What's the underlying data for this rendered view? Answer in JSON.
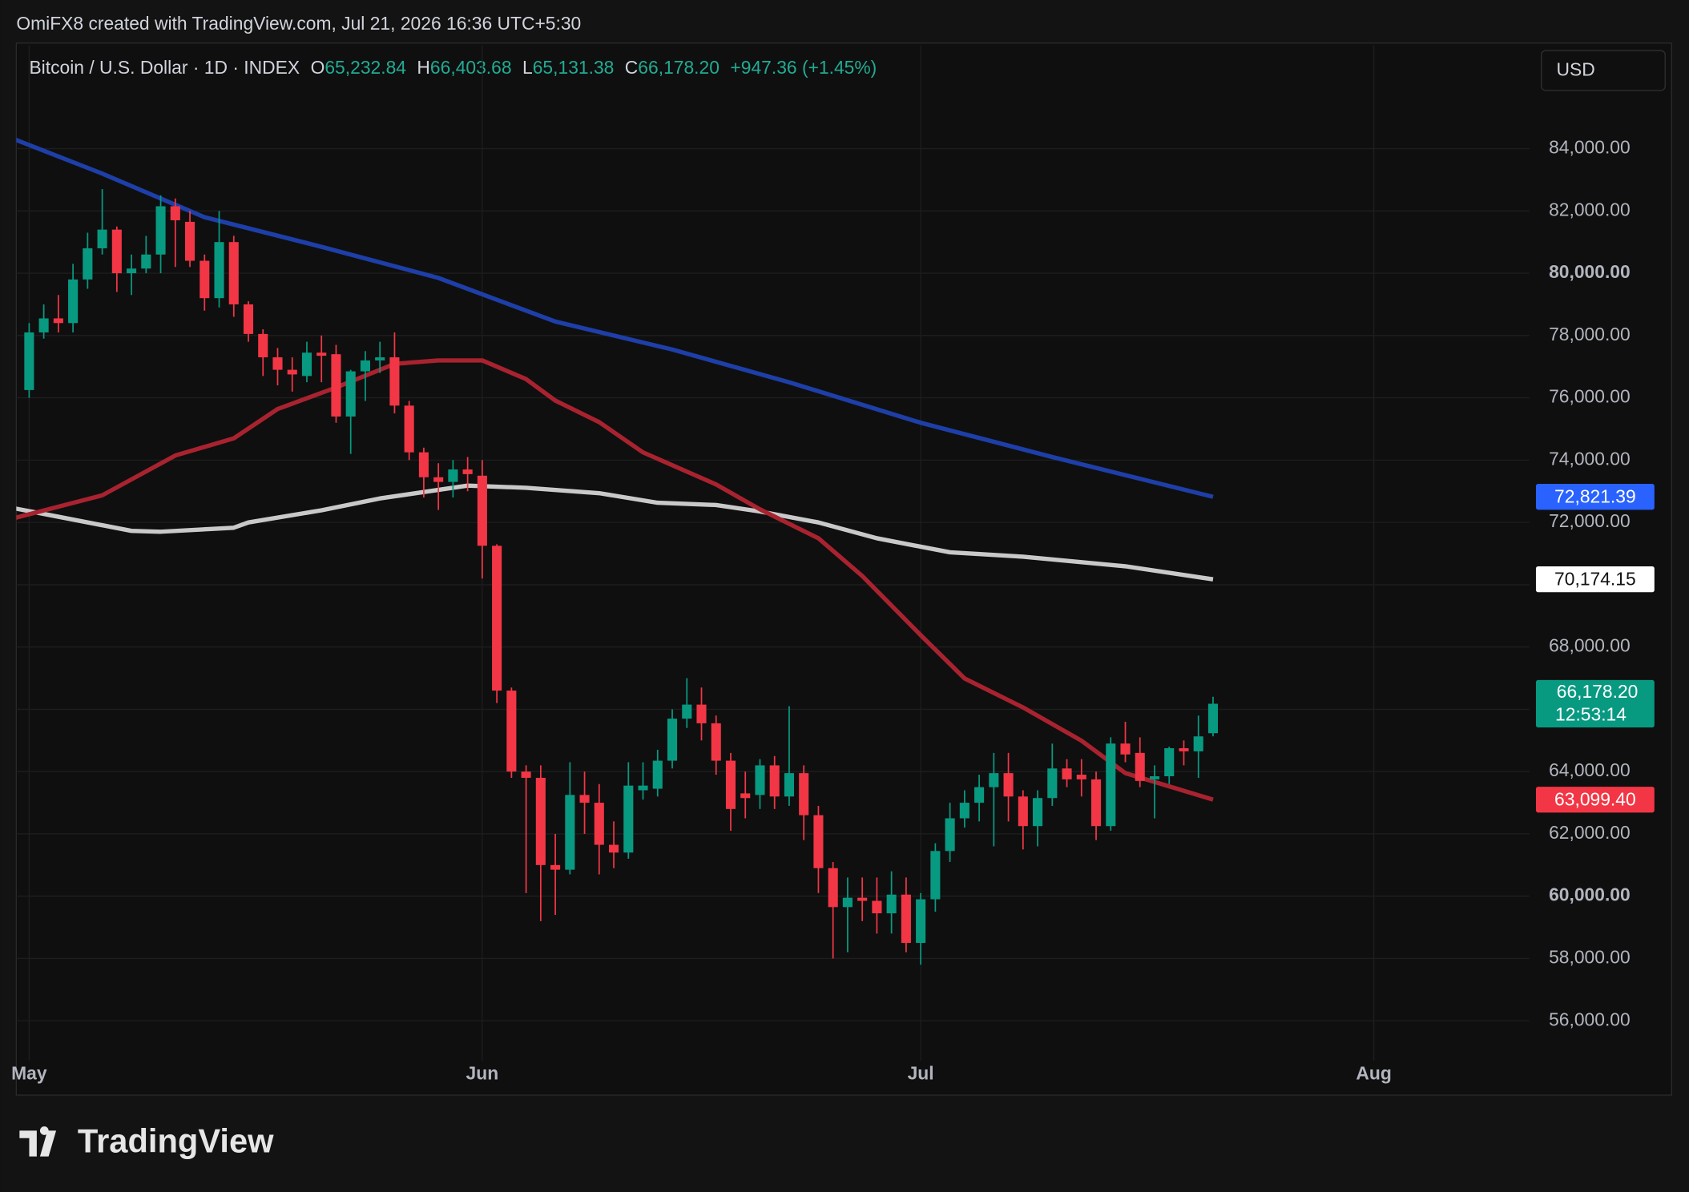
{
  "header": {
    "attribution": "OmiFX8 created with TradingView.com, Jul 21, 2026 16:36 UTC+5:30",
    "symbol": "Bitcoin / U.S. Dollar · 1D · INDEX",
    "ohlc": [
      {
        "key": "O",
        "value": "65,232.84"
      },
      {
        "key": "H",
        "value": "66,403.68"
      },
      {
        "key": "L",
        "value": "65,131.38"
      },
      {
        "key": "C",
        "value": "66,178.20"
      }
    ],
    "change": "+947.36 (+1.45%)",
    "currency": "USD"
  },
  "chart_data": {
    "type": "candlestick",
    "up_color": "#089981",
    "down_color": "#f23645",
    "grid": true,
    "x": [
      0,
      1,
      2,
      3,
      4,
      5,
      6,
      7,
      8,
      9,
      10,
      11,
      12,
      13,
      14,
      15,
      16,
      17,
      18,
      19,
      20,
      21,
      22,
      23,
      24,
      25,
      26,
      27,
      28,
      29,
      30,
      31,
      32,
      33,
      34,
      35,
      36,
      37,
      38,
      39,
      40,
      41,
      42,
      43,
      44,
      45,
      46,
      47,
      48,
      49,
      50,
      51,
      52,
      53,
      54,
      55,
      56,
      57,
      58,
      59,
      60,
      61,
      62,
      63,
      64,
      65,
      66,
      67,
      68,
      69,
      70,
      71,
      72,
      73,
      74,
      75,
      76,
      77,
      78,
      79,
      80,
      81
    ],
    "open": [
      76250,
      78100,
      78550,
      78400,
      79800,
      80800,
      81400,
      80000,
      80150,
      80600,
      82150,
      81650,
      80400,
      79200,
      81000,
      79000,
      78050,
      77300,
      76900,
      76700,
      77450,
      77400,
      75400,
      76850,
      77200,
      77300,
      75750,
      74250,
      73450,
      73300,
      73700,
      73500,
      71250,
      66600,
      64000,
      63800,
      61000,
      60850,
      63250,
      63000,
      61650,
      61400,
      63400,
      63450,
      64350,
      65700,
      66150,
      65550,
      64350,
      63300,
      63250,
      64200,
      63200,
      63950,
      62600,
      60900,
      59650,
      59950,
      59850,
      59450,
      60050,
      58500,
      59900,
      61450,
      62500,
      63000,
      63500,
      63950,
      63200,
      62250,
      63150,
      64100,
      63900,
      63750,
      62250,
      64900,
      64600,
      63750,
      63850,
      64750,
      64650,
      65232.84
    ],
    "high": [
      78400,
      79000,
      79300,
      80300,
      81300,
      82700,
      81500,
      80600,
      81200,
      82500,
      82400,
      82000,
      80600,
      82000,
      81200,
      79100,
      78200,
      77600,
      77300,
      77800,
      78000,
      77700,
      76900,
      77500,
      77800,
      78100,
      75900,
      74400,
      73900,
      74000,
      74100,
      74000,
      71300,
      66700,
      64200,
      64200,
      62000,
      64300,
      64000,
      63600,
      62400,
      64300,
      64300,
      64700,
      66000,
      67000,
      66700,
      65800,
      64600,
      64000,
      64400,
      64500,
      66100,
      64200,
      62900,
      61100,
      60600,
      60600,
      60600,
      60800,
      60600,
      60100,
      61700,
      63000,
      63400,
      63900,
      64600,
      64600,
      63400,
      63400,
      64900,
      64400,
      64400,
      64000,
      65100,
      65600,
      65100,
      64200,
      64800,
      65000,
      65800,
      66403.68
    ],
    "low": [
      76000,
      77900,
      78100,
      78100,
      79500,
      80600,
      79400,
      79300,
      80000,
      80000,
      80200,
      80200,
      78800,
      78900,
      78600,
      77800,
      76700,
      76400,
      76200,
      76500,
      76500,
      75200,
      74200,
      75900,
      76800,
      75500,
      74000,
      72800,
      72400,
      72800,
      73000,
      70200,
      66200,
      63800,
      60100,
      59200,
      59400,
      60700,
      62000,
      60700,
      60900,
      61200,
      63100,
      63200,
      64100,
      65400,
      65000,
      63900,
      62100,
      62500,
      62800,
      62800,
      62900,
      61800,
      60100,
      58000,
      58200,
      59200,
      58800,
      58800,
      58200,
      57800,
      59500,
      61100,
      62200,
      62400,
      61600,
      62400,
      61500,
      61600,
      62900,
      63500,
      63200,
      61800,
      62100,
      64300,
      63500,
      62500,
      63600,
      64200,
      63800,
      65131.38
    ],
    "close": [
      78100,
      78550,
      78400,
      79800,
      80800,
      81400,
      80000,
      80150,
      80600,
      82150,
      81700,
      80400,
      79200,
      81000,
      79000,
      78050,
      77300,
      76900,
      76750,
      77450,
      77350,
      75400,
      76850,
      77200,
      77300,
      75750,
      74250,
      73450,
      73300,
      73700,
      73550,
      71250,
      66600,
      64000,
      63800,
      61000,
      60850,
      63250,
      63000,
      61650,
      61400,
      63550,
      63550,
      64350,
      65700,
      66150,
      65550,
      64350,
      62800,
      63150,
      64200,
      63200,
      63950,
      62600,
      60900,
      59650,
      59950,
      59850,
      59450,
      60050,
      58500,
      59900,
      61450,
      62500,
      63000,
      63500,
      63950,
      63200,
      62250,
      63150,
      64100,
      63750,
      63750,
      62250,
      64900,
      64550,
      63700,
      63850,
      64750,
      64650,
      65130,
      66178.2
    ],
    "last_price": {
      "label": "66,178.20",
      "countdown": "12:53:14"
    },
    "xlim": [
      -0.88,
      102.65
    ],
    "xticks": [
      {
        "value": 0,
        "label": "May"
      },
      {
        "value": 31,
        "label": "Jun"
      },
      {
        "value": 61,
        "label": "Jul"
      },
      {
        "value": 92,
        "label": "Aug"
      }
    ],
    "ylim": [
      54720,
      87320
    ],
    "yticks": [
      {
        "value": 56000,
        "label": "56,000.00"
      },
      {
        "value": 58000,
        "label": "58,000.00"
      },
      {
        "value": 60000,
        "label": "60,000.00"
      },
      {
        "value": 62000,
        "label": "62,000.00"
      },
      {
        "value": 64000,
        "label": "64,000.00"
      },
      {
        "value": 66000,
        "label": "66,000.00"
      },
      {
        "value": 68000,
        "label": "68,000.00"
      },
      {
        "value": 70000,
        "label": "70,000.00"
      },
      {
        "value": 72000,
        "label": "72,000.00"
      },
      {
        "value": 74000,
        "label": "74,000.00"
      },
      {
        "value": 76000,
        "label": "76,000.00"
      },
      {
        "value": 78000,
        "label": "78,000.00"
      },
      {
        "value": 80000,
        "label": "80,000.00"
      },
      {
        "value": 82000,
        "label": "82,000.00"
      },
      {
        "value": 84000,
        "label": "84,000.00"
      }
    ],
    "lines": [
      {
        "color": "#1e3fa8",
        "label_color": "#2962ff",
        "label_text_color": "#ffffff",
        "x": [
          -1,
          5,
          12,
          20,
          28,
          36,
          44,
          52,
          61,
          70,
          81
        ],
        "values": [
          84300,
          83200,
          81800,
          80850,
          79850,
          78450,
          77550,
          76500,
          75200,
          74100,
          72821.39
        ],
        "value_labels": [
          null,
          null,
          null,
          null,
          null,
          null,
          null,
          null,
          null,
          null,
          "72,821.39"
        ]
      },
      {
        "color": "#c9c9c9",
        "label_color": "#ffffff",
        "label_text_color": "#131313",
        "x": [
          -1,
          2,
          7,
          9,
          14,
          15,
          20,
          24,
          30,
          34,
          39,
          43,
          47,
          50,
          54,
          58,
          63,
          68,
          75,
          81
        ],
        "values": [
          72450,
          72180,
          71730,
          71700,
          71830,
          72000,
          72390,
          72770,
          73180,
          73110,
          72940,
          72630,
          72560,
          72350,
          72000,
          71490,
          71040,
          70900,
          70590,
          70174.15
        ],
        "value_labels": [
          null,
          null,
          null,
          null,
          null,
          null,
          null,
          null,
          null,
          null,
          null,
          null,
          null,
          null,
          null,
          null,
          null,
          null,
          null,
          "70,174.15"
        ]
      },
      {
        "color": "#a8232f",
        "label_color": "#f23645",
        "label_text_color": "#ffffff",
        "x": [
          -1,
          5,
          10,
          14,
          17,
          21,
          25,
          28,
          31,
          34,
          36,
          39,
          42,
          47,
          50,
          54,
          57,
          61,
          64,
          68,
          72,
          75,
          81
        ],
        "values": [
          72140,
          72870,
          74150,
          74700,
          75640,
          76330,
          77090,
          77200,
          77200,
          76600,
          75910,
          75220,
          74250,
          73220,
          72420,
          71490,
          70280,
          68380,
          66990,
          66060,
          64990,
          63950,
          63099.4
        ],
        "value_labels": [
          null,
          null,
          null,
          null,
          null,
          null,
          null,
          null,
          null,
          null,
          null,
          null,
          null,
          null,
          null,
          null,
          null,
          null,
          null,
          null,
          null,
          null,
          "63,099.40"
        ]
      }
    ]
  },
  "footer": {
    "logo": "TradingView"
  }
}
